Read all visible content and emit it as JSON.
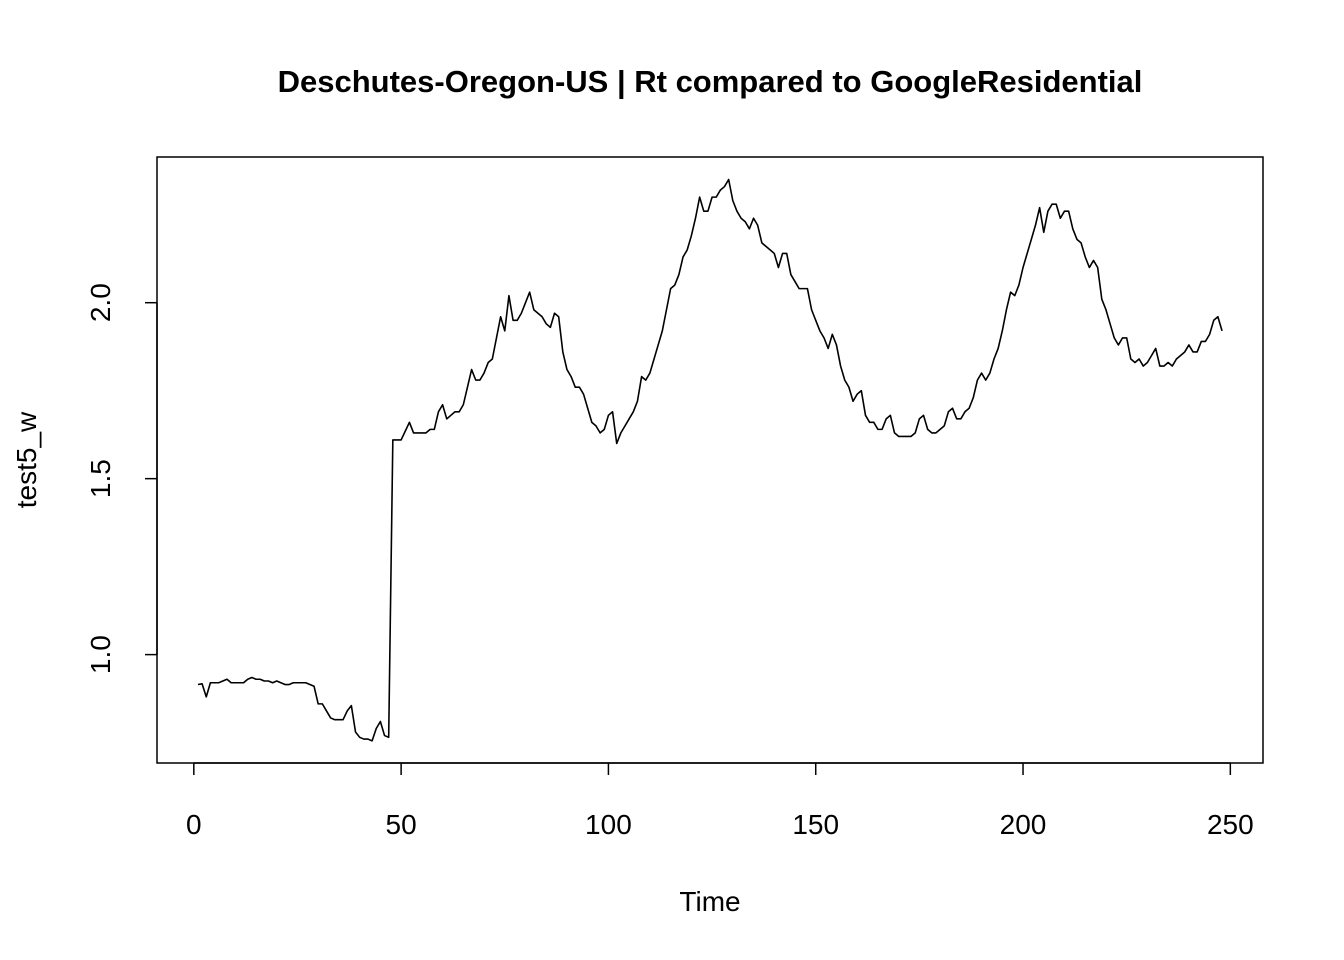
{
  "chart_data": {
    "type": "line",
    "title": "Deschutes-Oregon-US | Rt compared to GoogleResidential",
    "x_label": "Time",
    "y_label": "test5_w",
    "color": "#000000",
    "xlim": [
      -8.88,
      257.88
    ],
    "ylim": [
      0.692,
      2.414
    ],
    "xticks": [
      0,
      50,
      100,
      150,
      200,
      250
    ],
    "yticks": [
      {
        "value": 1,
        "label": "1.0"
      },
      1.5,
      {
        "value": 2,
        "label": "2.0"
      }
    ],
    "x": [
      1,
      2,
      3,
      4,
      5,
      6,
      7,
      8,
      9,
      10,
      11,
      12,
      13,
      14,
      15,
      16,
      17,
      18,
      19,
      20,
      21,
      22,
      23,
      24,
      25,
      26,
      27,
      28,
      29,
      30,
      31,
      32,
      33,
      34,
      35,
      36,
      37,
      38,
      39,
      40,
      41,
      42,
      43,
      44,
      45,
      46,
      47,
      48,
      49,
      50,
      51,
      52,
      53,
      54,
      55,
      56,
      57,
      58,
      59,
      60,
      61,
      62,
      63,
      64,
      65,
      66,
      67,
      68,
      69,
      70,
      71,
      72,
      73,
      74,
      75,
      76,
      77,
      78,
      79,
      80,
      81,
      82,
      83,
      84,
      85,
      86,
      87,
      88,
      89,
      90,
      91,
      92,
      93,
      94,
      95,
      96,
      97,
      98,
      99,
      100,
      101,
      102,
      103,
      104,
      105,
      106,
      107,
      108,
      109,
      110,
      111,
      112,
      113,
      114,
      115,
      116,
      117,
      118,
      119,
      120,
      121,
      122,
      123,
      124,
      125,
      126,
      127,
      128,
      129,
      130,
      131,
      132,
      133,
      134,
      135,
      136,
      137,
      138,
      139,
      140,
      141,
      142,
      143,
      144,
      145,
      146,
      147,
      148,
      149,
      150,
      151,
      152,
      153,
      154,
      155,
      156,
      157,
      158,
      159,
      160,
      161,
      162,
      163,
      164,
      165,
      166,
      167,
      168,
      169,
      170,
      171,
      172,
      173,
      174,
      175,
      176,
      177,
      178,
      179,
      180,
      181,
      182,
      183,
      184,
      185,
      186,
      187,
      188,
      189,
      190,
      191,
      192,
      193,
      194,
      195,
      196,
      197,
      198,
      199,
      200,
      201,
      202,
      203,
      204,
      205,
      206,
      207,
      208,
      209,
      210,
      211,
      212,
      213,
      214,
      215,
      216,
      217,
      218,
      219,
      220,
      221,
      222,
      223,
      224,
      225,
      226,
      227,
      228,
      229,
      230,
      231,
      232,
      233,
      234,
      235,
      236,
      237,
      238,
      239,
      240,
      241,
      242,
      243,
      244,
      245,
      246,
      247,
      248
    ],
    "values": [
      0.915,
      0.917,
      0.88,
      0.92,
      0.92,
      0.92,
      0.925,
      0.93,
      0.92,
      0.92,
      0.92,
      0.92,
      0.93,
      0.935,
      0.93,
      0.93,
      0.925,
      0.925,
      0.92,
      0.925,
      0.92,
      0.915,
      0.915,
      0.92,
      0.92,
      0.92,
      0.92,
      0.915,
      0.91,
      0.86,
      0.86,
      0.84,
      0.82,
      0.815,
      0.815,
      0.815,
      0.84,
      0.855,
      0.78,
      0.765,
      0.76,
      0.76,
      0.755,
      0.79,
      0.81,
      0.77,
      0.765,
      1.61,
      1.61,
      1.61,
      1.635,
      1.66,
      1.63,
      1.63,
      1.63,
      1.63,
      1.64,
      1.64,
      1.69,
      1.71,
      1.67,
      1.68,
      1.69,
      1.69,
      1.71,
      1.76,
      1.81,
      1.78,
      1.78,
      1.8,
      1.83,
      1.84,
      1.9,
      1.96,
      1.92,
      2.02,
      1.95,
      1.95,
      1.97,
      2.0,
      2.03,
      1.98,
      1.97,
      1.96,
      1.94,
      1.93,
      1.97,
      1.96,
      1.86,
      1.81,
      1.79,
      1.76,
      1.76,
      1.74,
      1.7,
      1.66,
      1.65,
      1.63,
      1.64,
      1.68,
      1.69,
      1.6,
      1.63,
      1.65,
      1.67,
      1.69,
      1.72,
      1.79,
      1.78,
      1.8,
      1.84,
      1.88,
      1.92,
      1.98,
      2.04,
      2.05,
      2.08,
      2.13,
      2.15,
      2.19,
      2.24,
      2.3,
      2.26,
      2.26,
      2.3,
      2.3,
      2.32,
      2.33,
      2.35,
      2.29,
      2.26,
      2.24,
      2.23,
      2.21,
      2.24,
      2.22,
      2.17,
      2.16,
      2.15,
      2.14,
      2.1,
      2.14,
      2.14,
      2.08,
      2.06,
      2.04,
      2.04,
      2.04,
      1.98,
      1.95,
      1.92,
      1.9,
      1.87,
      1.91,
      1.88,
      1.82,
      1.78,
      1.76,
      1.72,
      1.74,
      1.75,
      1.68,
      1.66,
      1.66,
      1.64,
      1.64,
      1.67,
      1.68,
      1.63,
      1.62,
      1.62,
      1.62,
      1.62,
      1.63,
      1.67,
      1.68,
      1.64,
      1.63,
      1.63,
      1.64,
      1.65,
      1.69,
      1.7,
      1.67,
      1.67,
      1.69,
      1.7,
      1.73,
      1.78,
      1.8,
      1.78,
      1.8,
      1.84,
      1.87,
      1.92,
      1.98,
      2.03,
      2.02,
      2.05,
      2.1,
      2.14,
      2.18,
      2.22,
      2.27,
      2.2,
      2.26,
      2.28,
      2.28,
      2.24,
      2.26,
      2.26,
      2.21,
      2.18,
      2.17,
      2.13,
      2.1,
      2.12,
      2.1,
      2.01,
      1.98,
      1.94,
      1.9,
      1.88,
      1.9,
      1.9,
      1.84,
      1.83,
      1.84,
      1.82,
      1.83,
      1.85,
      1.87,
      1.82,
      1.82,
      1.83,
      1.82,
      1.84,
      1.85,
      1.86,
      1.88,
      1.86,
      1.86,
      1.89,
      1.89,
      1.91,
      1.95,
      1.96,
      1.92
    ]
  }
}
